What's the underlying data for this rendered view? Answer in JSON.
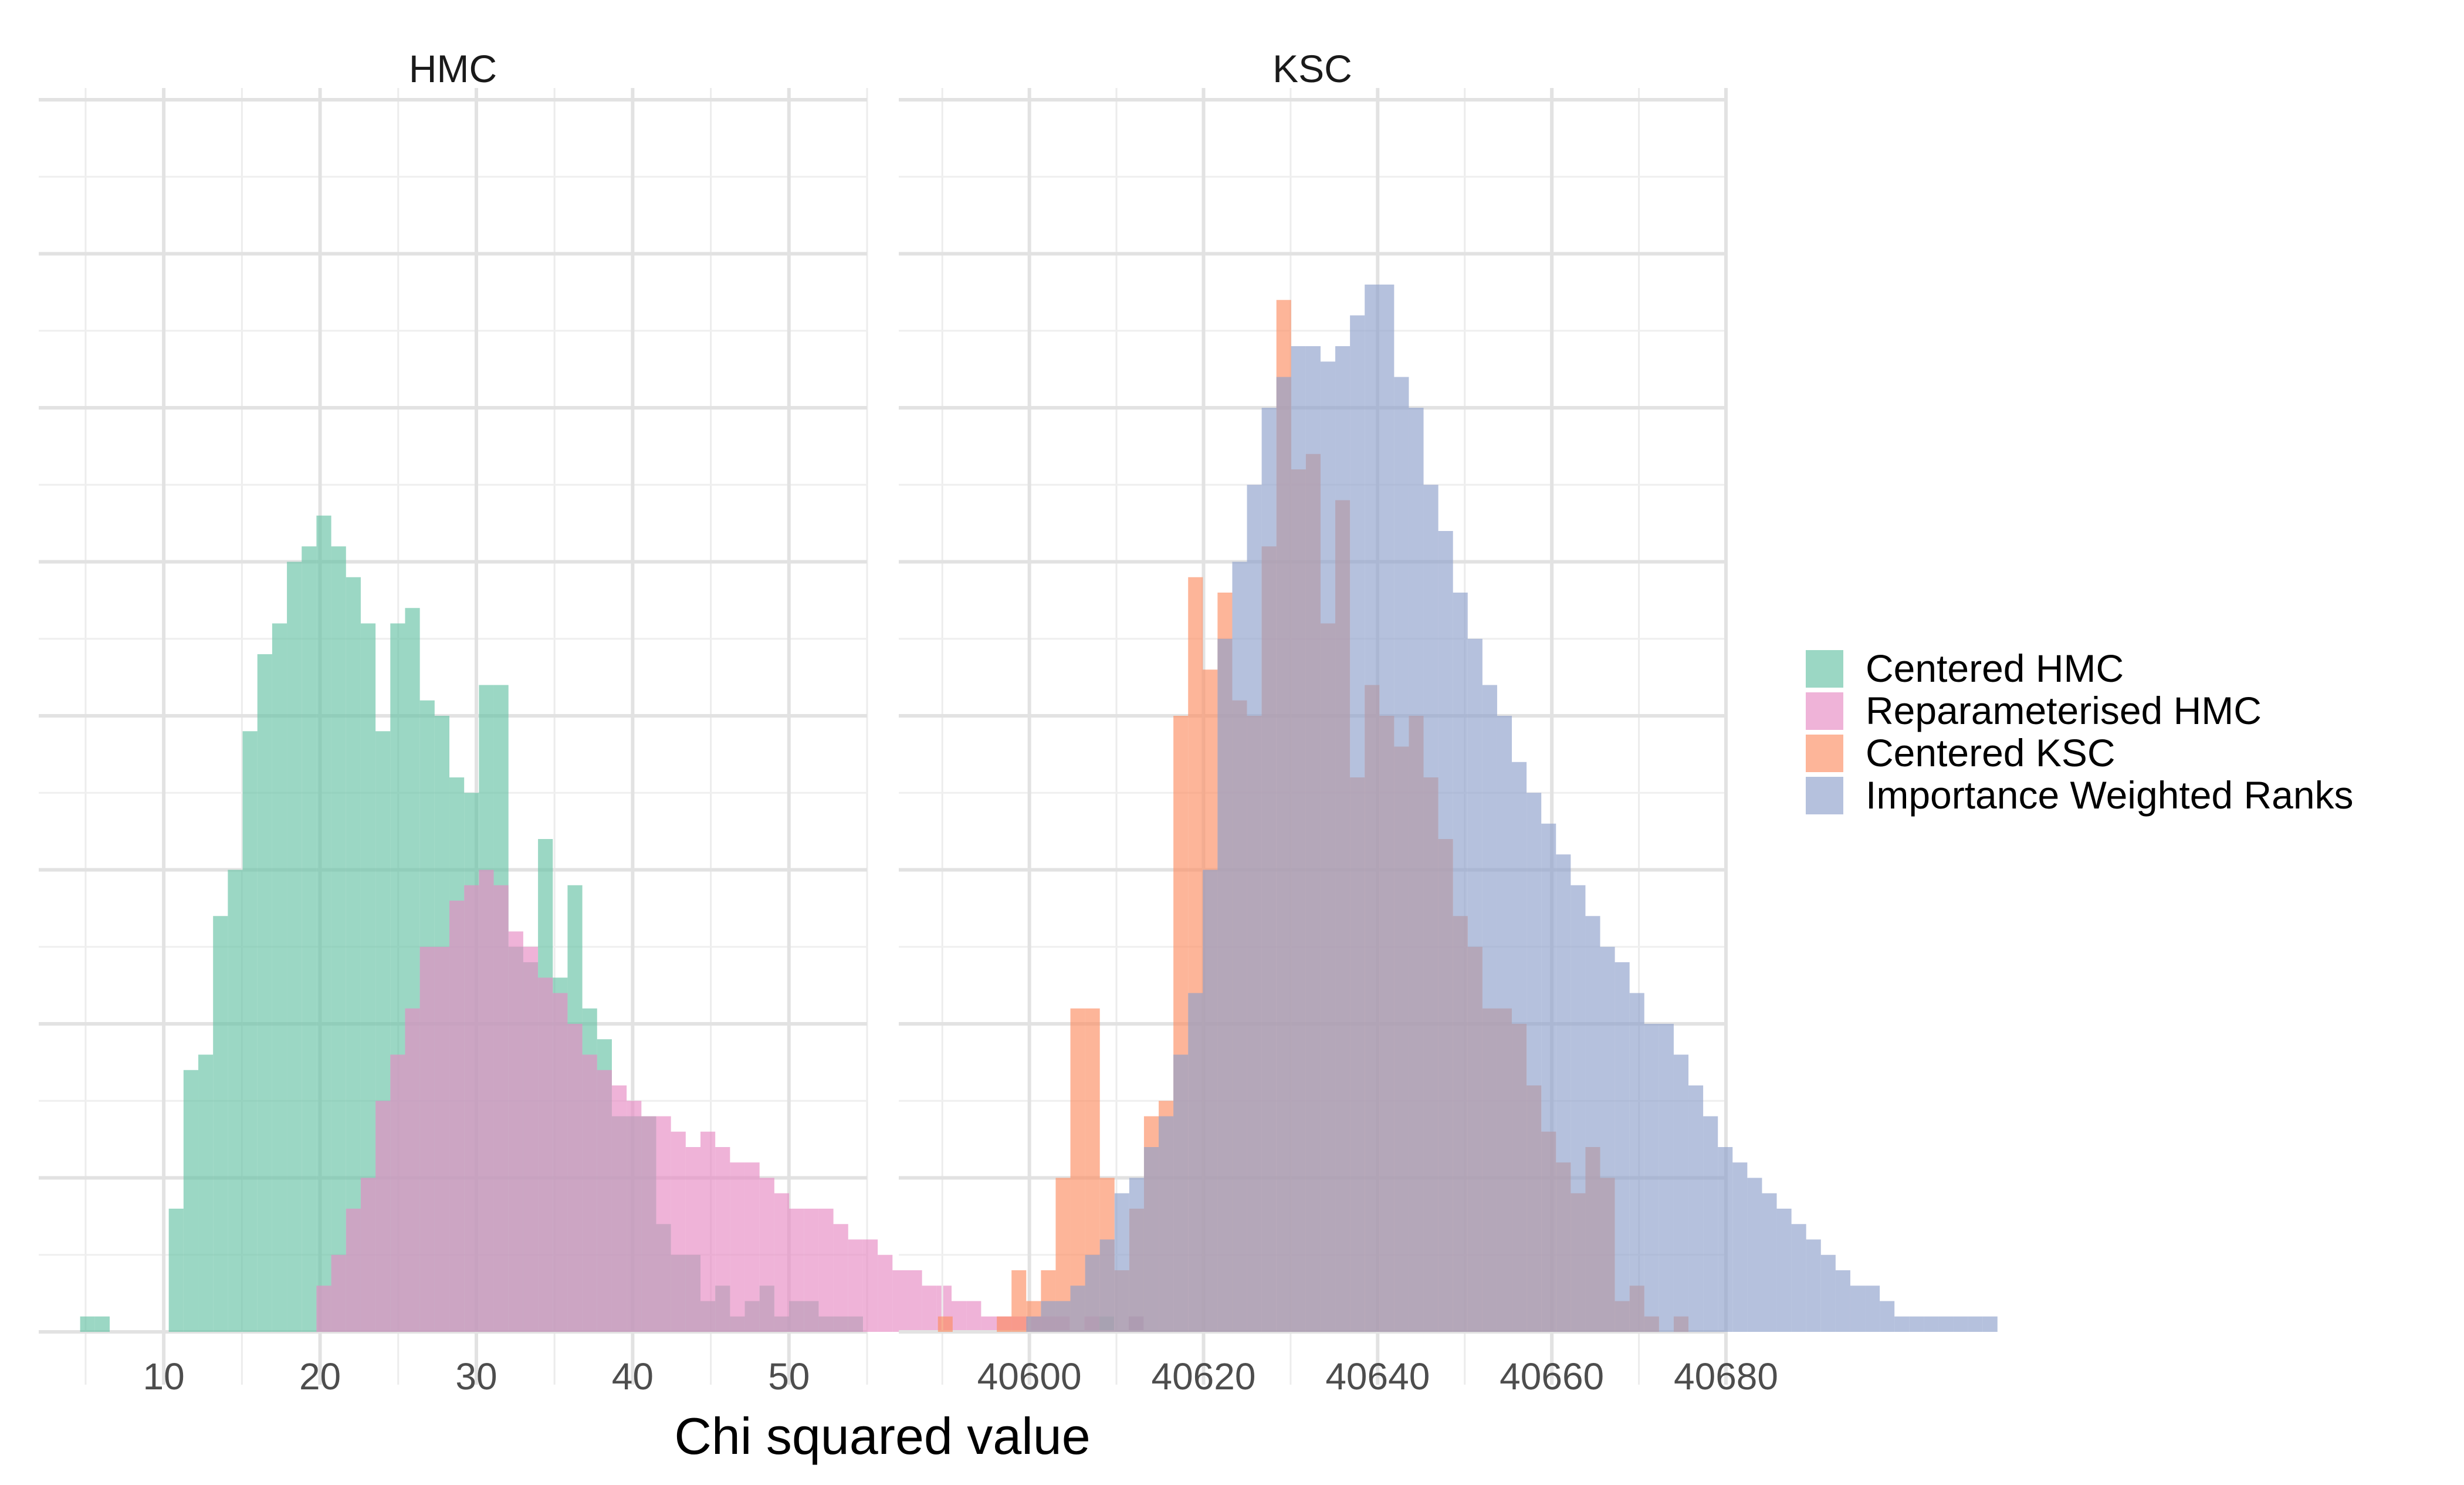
{
  "chart_data": {
    "type": "histogram",
    "xlabel": "Chi squared value",
    "ylabel": "",
    "y_tick_labels_shown": false,
    "grid": true,
    "legend_position": "right",
    "panels": [
      {
        "title": "HMC",
        "xlim": [
          2,
          55
        ],
        "x_ticks": [
          10,
          20,
          30,
          40,
          50
        ],
        "x_tick_labels": [
          "10",
          "20",
          "30",
          "40",
          "50"
        ],
        "ylim": [
          0,
          80
        ],
        "bin_start": 4.65,
        "bin_width": 0.945,
        "series": [
          {
            "name": "Centered HMC",
            "color": "#66c2a5",
            "counts": [
              1,
              1,
              0,
              0,
              0,
              0,
              8,
              17,
              18,
              27,
              30,
              39,
              44,
              46,
              50,
              51,
              53,
              51,
              49,
              46,
              39,
              46,
              47,
              41,
              40,
              36,
              35,
              42,
              42,
              25,
              24,
              32,
              23,
              29,
              21,
              19,
              14,
              14,
              14,
              7,
              5,
              5,
              2,
              3,
              1,
              2,
              3,
              1,
              2,
              2,
              1,
              1,
              1,
              0,
              0,
              0,
              0,
              0,
              0,
              0,
              0,
              0,
              0,
              0,
              0,
              0,
              0,
              0,
              0,
              1,
              0,
              1
            ]
          },
          {
            "name": "Reparameterised HMC",
            "color": "#e78ac3",
            "counts": [
              0,
              0,
              0,
              0,
              0,
              0,
              0,
              0,
              0,
              0,
              0,
              0,
              0,
              0,
              0,
              0,
              3,
              5,
              8,
              10,
              15,
              18,
              21,
              25,
              25,
              28,
              29,
              30,
              29,
              26,
              25,
              23,
              22,
              20,
              18,
              17,
              16,
              15,
              14,
              14,
              13,
              12,
              13,
              12,
              11,
              11,
              10,
              9,
              8,
              8,
              8,
              7,
              6,
              6,
              5,
              4,
              4,
              3,
              3,
              2,
              2,
              1,
              1,
              1,
              1,
              1,
              1,
              0,
              1,
              0,
              0,
              1
            ]
          }
        ]
      },
      {
        "title": "KSC",
        "xlim": [
          40585,
          40680
        ],
        "x_ticks": [
          40600,
          40620,
          40640,
          40660,
          40680
        ],
        "x_tick_labels": [
          "40600",
          "40620",
          "40640",
          "40660",
          "40680"
        ],
        "ylim": [
          0,
          80
        ],
        "bin_start": 40589.5,
        "bin_width": 1.69,
        "series": [
          {
            "name": "Centered KSC",
            "color": "#fc8d62",
            "counts": [
              1,
              0,
              0,
              0,
              1,
              4,
              2,
              4,
              10,
              21,
              21,
              10,
              4,
              8,
              14,
              15,
              40,
              49,
              43,
              48,
              41,
              40,
              51,
              67,
              56,
              57,
              46,
              54,
              36,
              42,
              40,
              38,
              40,
              36,
              32,
              27,
              25,
              21,
              21,
              20,
              16,
              13,
              11,
              9,
              12,
              10,
              2,
              3,
              1,
              0,
              1,
              0,
              0,
              0,
              0,
              0,
              0,
              0,
              0,
              0,
              0,
              0,
              0,
              0,
              0,
              0,
              0,
              0,
              0,
              0,
              0,
              0
            ]
          },
          {
            "name": "Importance Weighted Ranks",
            "color": "#8da0cb",
            "counts": [
              0,
              0,
              0,
              0,
              0,
              0,
              1,
              2,
              2,
              3,
              5,
              6,
              9,
              10,
              12,
              14,
              18,
              22,
              30,
              45,
              50,
              55,
              60,
              62,
              64,
              64,
              63,
              64,
              66,
              68,
              68,
              62,
              60,
              55,
              52,
              48,
              45,
              42,
              40,
              37,
              35,
              33,
              31,
              29,
              27,
              25,
              24,
              22,
              20,
              20,
              18,
              16,
              14,
              12,
              11,
              10,
              9,
              8,
              7,
              6,
              5,
              4,
              3,
              3,
              2,
              1,
              1,
              1,
              1,
              1,
              1,
              1
            ]
          }
        ]
      }
    ],
    "legend": [
      {
        "label": "Centered HMC",
        "color": "#66c2a5"
      },
      {
        "label": "Reparameterised HMC",
        "color": "#e78ac3"
      },
      {
        "label": "Centered KSC",
        "color": "#fc8d62"
      },
      {
        "label": "Importance Weighted Ranks",
        "color": "#8da0cb"
      }
    ]
  }
}
